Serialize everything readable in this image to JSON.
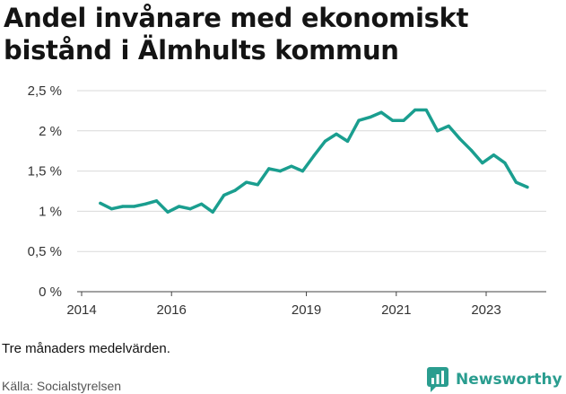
{
  "title": "Andel invånare med ekonomiskt bistånd i Älmhults kommun",
  "note": "Tre månaders medelvärden.",
  "source": "Källa: Socialstyrelsen",
  "brand": {
    "name": "Newsworthy",
    "icon": "newsworthy-logo-icon",
    "color": "#2a9d8f"
  },
  "chart_data": {
    "type": "line",
    "title": "Andel invånare med ekonomiskt bistånd i Älmhults kommun",
    "xlabel": "",
    "ylabel": "",
    "x_ticks": [
      "2014",
      "2016",
      "2019",
      "2021",
      "2023"
    ],
    "y_ticks": [
      "0 %",
      "0,5 %",
      "1 %",
      "1,5 %",
      "2 %",
      "2,5 %"
    ],
    "ylim": [
      0,
      2.5
    ],
    "grid": "horizontal",
    "line_color": "#1a9e8f",
    "series": [
      {
        "x": [
          "2014-06",
          "2014-09",
          "2014-12",
          "2015-03",
          "2015-06",
          "2015-09",
          "2015-12",
          "2016-03",
          "2016-06",
          "2016-09",
          "2016-12",
          "2017-03",
          "2017-06",
          "2017-09",
          "2017-12",
          "2018-03",
          "2018-06",
          "2018-09",
          "2018-12",
          "2019-03",
          "2019-06",
          "2019-09",
          "2019-12",
          "2020-03",
          "2020-06",
          "2020-09",
          "2020-12",
          "2021-03",
          "2021-06",
          "2021-09",
          "2021-12",
          "2022-03",
          "2022-06",
          "2022-09",
          "2022-12",
          "2023-03",
          "2023-06",
          "2023-09",
          "2023-12"
        ],
        "values": [
          1.1,
          1.03,
          1.06,
          1.06,
          1.09,
          1.13,
          0.99,
          1.06,
          1.03,
          1.09,
          0.99,
          1.2,
          1.26,
          1.36,
          1.33,
          1.53,
          1.5,
          1.56,
          1.5,
          1.69,
          1.87,
          1.96,
          1.87,
          2.13,
          2.17,
          2.23,
          2.13,
          2.13,
          2.26,
          2.26,
          2.0,
          2.06,
          1.9,
          1.76,
          1.6,
          1.7,
          1.6,
          1.36,
          1.3
        ]
      }
    ]
  }
}
